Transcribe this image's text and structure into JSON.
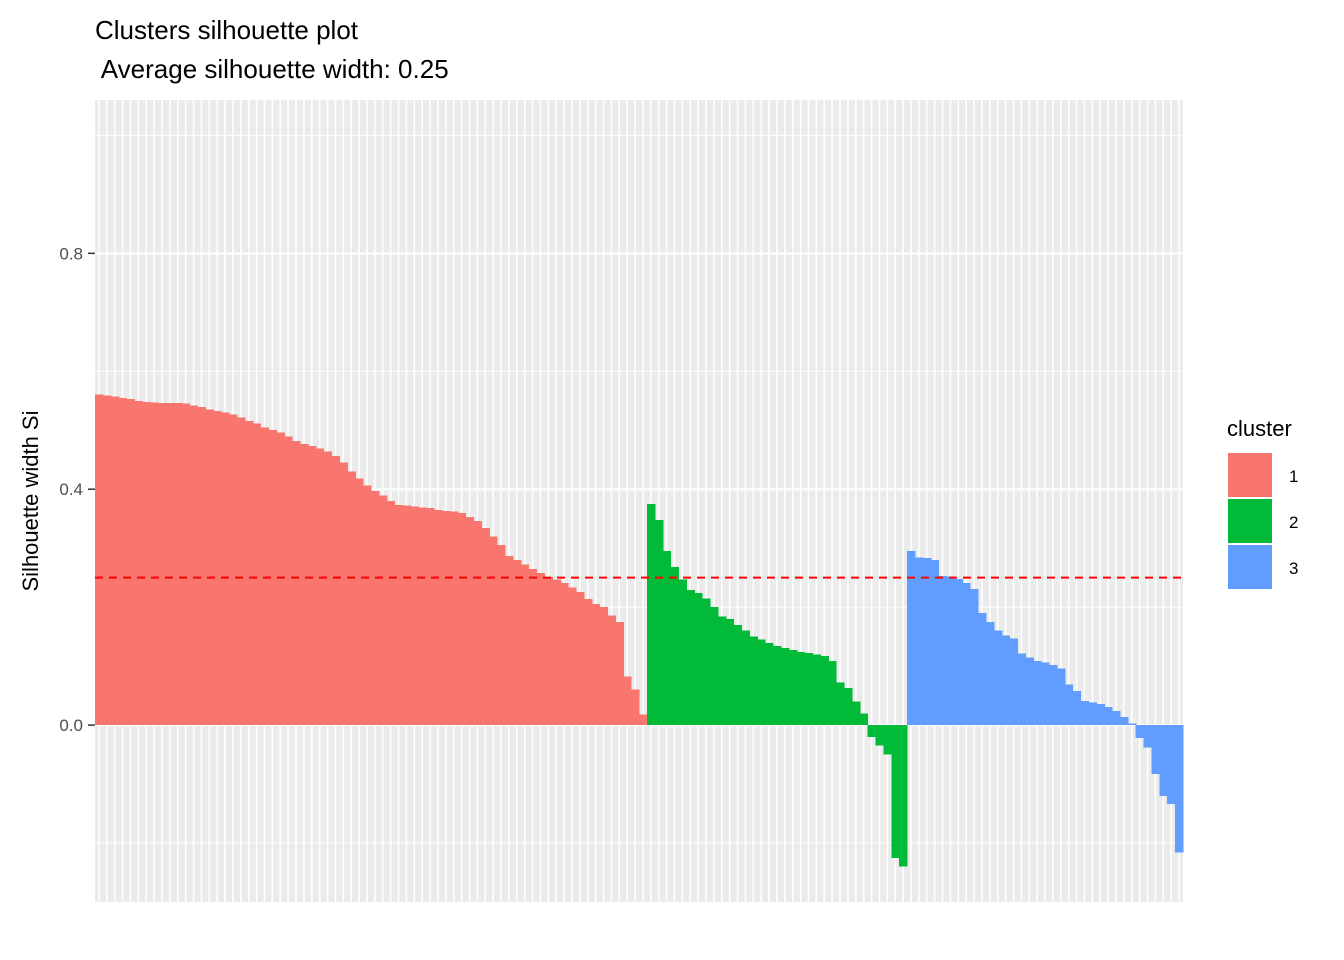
{
  "chart_data": {
    "type": "bar",
    "title": "Clusters silhouette plot",
    "subtitle": " Average silhouette width: 0.25",
    "xlabel": "",
    "ylabel": "Silhouette width Si",
    "ylim": [
      -0.3,
      1.06
    ],
    "yticks": [
      0.0,
      0.4,
      0.8
    ],
    "ytick_labels": [
      "0.0",
      "0.4",
      "0.8"
    ],
    "average_line": 0.25,
    "average_line_color": "#ff0000",
    "panel_background": "#ebebeb",
    "grid": true,
    "legend": {
      "title": "cluster",
      "position": "right",
      "entries": [
        {
          "label": "1",
          "color": "#F8766D"
        },
        {
          "label": "2",
          "color": "#00BA38"
        },
        {
          "label": "3",
          "color": "#619CFF"
        }
      ]
    },
    "series": [
      {
        "name": "1",
        "color": "#F8766D",
        "values": [
          0.561,
          0.559,
          0.557,
          0.555,
          0.553,
          0.55,
          0.548,
          0.547,
          0.546,
          0.546,
          0.546,
          0.545,
          0.542,
          0.539,
          0.535,
          0.533,
          0.53,
          0.527,
          0.522,
          0.516,
          0.511,
          0.505,
          0.5,
          0.496,
          0.489,
          0.482,
          0.477,
          0.473,
          0.469,
          0.464,
          0.456,
          0.445,
          0.43,
          0.418,
          0.406,
          0.397,
          0.389,
          0.38,
          0.373,
          0.372,
          0.371,
          0.369,
          0.368,
          0.365,
          0.363,
          0.362,
          0.36,
          0.353,
          0.346,
          0.334,
          0.32,
          0.305,
          0.287,
          0.28,
          0.272,
          0.265,
          0.258,
          0.251,
          0.247,
          0.241,
          0.233,
          0.226,
          0.214,
          0.205,
          0.2,
          0.186,
          0.175,
          0.082,
          0.06,
          0.018
        ]
      },
      {
        "name": "2",
        "color": "#00BA38",
        "values": [
          0.375,
          0.348,
          0.295,
          0.268,
          0.247,
          0.229,
          0.224,
          0.215,
          0.2,
          0.184,
          0.18,
          0.17,
          0.16,
          0.15,
          0.145,
          0.139,
          0.134,
          0.131,
          0.127,
          0.124,
          0.122,
          0.12,
          0.117,
          0.109,
          0.072,
          0.063,
          0.04,
          0.02,
          -0.02,
          -0.035,
          -0.05,
          -0.225,
          -0.24
        ]
      },
      {
        "name": "3",
        "color": "#619CFF",
        "values": [
          0.295,
          0.284,
          0.283,
          0.28,
          0.253,
          0.252,
          0.248,
          0.241,
          0.231,
          0.19,
          0.175,
          0.16,
          0.152,
          0.147,
          0.121,
          0.115,
          0.109,
          0.106,
          0.102,
          0.096,
          0.069,
          0.058,
          0.041,
          0.038,
          0.036,
          0.031,
          0.024,
          0.014,
          0.003,
          -0.022,
          -0.038,
          -0.083,
          -0.12,
          -0.134,
          -0.216
        ]
      }
    ]
  }
}
